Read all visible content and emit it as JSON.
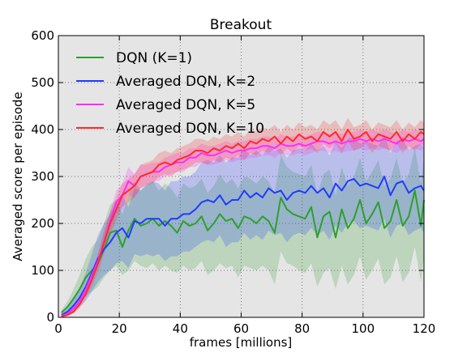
{
  "colors": {
    "dqn": "#2ca02c",
    "avg_k2": "#1f3cff",
    "avg_k5": "#ff2bff",
    "avg_k10": "#ff2a2a",
    "axes_bg": "#e5e5e5",
    "grid": "#777777"
  },
  "chart_data": {
    "type": "line",
    "title": "Breakout",
    "xlabel": "frames [millions]",
    "ylabel": "Averaged score per episode",
    "xlim": [
      0,
      120
    ],
    "ylim": [
      0,
      600
    ],
    "xticks": [
      0,
      20,
      40,
      60,
      80,
      100,
      120
    ],
    "yticks": [
      0,
      100,
      200,
      300,
      400,
      500,
      600
    ],
    "grid": true,
    "legend_position": "top-left",
    "x": [
      1,
      3,
      5,
      7,
      9,
      11,
      13,
      15,
      17,
      19,
      21,
      23,
      25,
      27,
      29,
      31,
      33,
      35,
      37,
      39,
      41,
      43,
      45,
      47,
      49,
      51,
      53,
      55,
      57,
      59,
      61,
      63,
      65,
      67,
      69,
      71,
      73,
      75,
      77,
      79,
      81,
      83,
      85,
      87,
      89,
      91,
      93,
      95,
      97,
      99,
      101,
      103,
      105,
      107,
      109,
      111,
      113,
      115,
      117,
      119,
      120
    ],
    "series": [
      {
        "name": "DQN (K=1)",
        "color_key": "dqn",
        "values": [
          10,
          22,
          40,
          60,
          85,
          100,
          115,
          145,
          180,
          185,
          150,
          185,
          210,
          195,
          200,
          210,
          195,
          205,
          195,
          180,
          205,
          195,
          200,
          215,
          185,
          200,
          220,
          205,
          210,
          190,
          215,
          210,
          200,
          215,
          205,
          180,
          255,
          230,
          220,
          215,
          210,
          235,
          170,
          215,
          225,
          170,
          230,
          190,
          210,
          250,
          200,
          220,
          245,
          190,
          205,
          250,
          195,
          215,
          270,
          195,
          250
        ],
        "lower": [
          5,
          10,
          20,
          30,
          45,
          55,
          65,
          85,
          100,
          110,
          90,
          100,
          120,
          110,
          105,
          115,
          100,
          110,
          100,
          95,
          110,
          100,
          105,
          120,
          90,
          100,
          115,
          105,
          110,
          85,
          110,
          105,
          100,
          110,
          100,
          70,
          140,
          115,
          110,
          100,
          95,
          115,
          65,
          95,
          105,
          60,
          110,
          70,
          90,
          130,
          80,
          100,
          125,
          70,
          85,
          130,
          75,
          95,
          150,
          75,
          130
        ],
        "upper": [
          15,
          34,
          60,
          90,
          125,
          150,
          165,
          200,
          240,
          250,
          220,
          260,
          290,
          270,
          280,
          290,
          270,
          285,
          275,
          255,
          285,
          275,
          280,
          295,
          265,
          280,
          305,
          285,
          295,
          275,
          300,
          295,
          285,
          300,
          290,
          265,
          345,
          320,
          310,
          305,
          300,
          325,
          260,
          305,
          315,
          260,
          320,
          280,
          300,
          340,
          290,
          310,
          335,
          280,
          295,
          340,
          285,
          305,
          360,
          285,
          340
        ]
      },
      {
        "name": "Averaged DQN, K=2",
        "color_key": "avg_k2",
        "values": [
          5,
          12,
          25,
          42,
          65,
          95,
          125,
          145,
          160,
          180,
          190,
          170,
          205,
          200,
          210,
          210,
          210,
          195,
          210,
          210,
          220,
          220,
          230,
          245,
          250,
          245,
          260,
          240,
          250,
          250,
          270,
          255,
          265,
          255,
          275,
          265,
          270,
          250,
          265,
          270,
          265,
          280,
          265,
          275,
          255,
          285,
          270,
          290,
          295,
          280,
          285,
          280,
          275,
          300,
          260,
          285,
          290,
          265,
          275,
          280,
          270
        ],
        "lower": [
          2,
          6,
          12,
          22,
          35,
          55,
          75,
          90,
          100,
          115,
          120,
          105,
          135,
          130,
          135,
          130,
          135,
          120,
          130,
          130,
          140,
          140,
          150,
          160,
          165,
          160,
          175,
          150,
          160,
          160,
          180,
          165,
          175,
          165,
          185,
          175,
          180,
          160,
          175,
          180,
          175,
          190,
          175,
          185,
          165,
          195,
          180,
          200,
          205,
          190,
          195,
          190,
          185,
          210,
          170,
          195,
          200,
          175,
          185,
          190,
          180
        ],
        "upper": [
          8,
          18,
          38,
          62,
          95,
          135,
          175,
          200,
          220,
          245,
          260,
          235,
          275,
          270,
          285,
          290,
          285,
          270,
          290,
          290,
          300,
          300,
          310,
          330,
          335,
          330,
          345,
          330,
          340,
          340,
          360,
          345,
          355,
          345,
          365,
          355,
          360,
          340,
          355,
          360,
          355,
          370,
          355,
          365,
          345,
          375,
          360,
          380,
          385,
          370,
          375,
          370,
          365,
          390,
          350,
          375,
          380,
          355,
          365,
          370,
          360
        ]
      },
      {
        "name": "Averaged DQN, K=5",
        "color_key": "avg_k5",
        "values": [
          3,
          8,
          18,
          35,
          60,
          90,
          120,
          160,
          205,
          245,
          260,
          290,
          280,
          300,
          305,
          310,
          310,
          320,
          325,
          330,
          330,
          340,
          340,
          350,
          345,
          345,
          350,
          355,
          350,
          355,
          355,
          360,
          360,
          365,
          365,
          360,
          370,
          365,
          365,
          370,
          365,
          370,
          375,
          375,
          370,
          375,
          370,
          375,
          375,
          380,
          375,
          380,
          375,
          380,
          375,
          370,
          380,
          375,
          380,
          375,
          380
        ],
        "lower": [
          2,
          6,
          14,
          28,
          50,
          78,
          105,
          140,
          185,
          220,
          235,
          260,
          255,
          275,
          285,
          290,
          290,
          300,
          305,
          310,
          310,
          320,
          320,
          330,
          325,
          325,
          330,
          335,
          330,
          335,
          335,
          340,
          340,
          345,
          345,
          340,
          350,
          345,
          345,
          350,
          345,
          350,
          355,
          355,
          350,
          355,
          350,
          355,
          355,
          360,
          355,
          360,
          355,
          360,
          355,
          350,
          360,
          355,
          360,
          355,
          360
        ],
        "upper": [
          4,
          10,
          22,
          42,
          70,
          102,
          135,
          180,
          225,
          270,
          285,
          320,
          305,
          325,
          325,
          330,
          330,
          340,
          345,
          350,
          350,
          360,
          360,
          370,
          365,
          365,
          370,
          375,
          370,
          375,
          375,
          380,
          380,
          385,
          385,
          380,
          390,
          385,
          385,
          390,
          385,
          390,
          395,
          395,
          390,
          395,
          390,
          395,
          395,
          400,
          395,
          400,
          395,
          400,
          395,
          390,
          400,
          395,
          400,
          395,
          400
        ]
      },
      {
        "name": "Averaged DQN, K=10",
        "color_key": "avg_k10",
        "values": [
          2,
          5,
          12,
          28,
          50,
          80,
          115,
          160,
          200,
          230,
          260,
          270,
          280,
          300,
          305,
          310,
          325,
          330,
          325,
          335,
          340,
          345,
          355,
          355,
          350,
          360,
          355,
          365,
          360,
          370,
          360,
          375,
          370,
          380,
          375,
          385,
          370,
          385,
          375,
          390,
          380,
          385,
          375,
          395,
          385,
          395,
          375,
          400,
          380,
          385,
          395,
          375,
          390,
          385,
          380,
          395,
          375,
          390,
          380,
          395,
          390
        ],
        "lower": [
          1,
          3,
          8,
          20,
          40,
          65,
          95,
          135,
          175,
          205,
          235,
          245,
          255,
          275,
          280,
          285,
          300,
          305,
          300,
          310,
          315,
          320,
          330,
          330,
          325,
          335,
          330,
          340,
          335,
          345,
          335,
          350,
          345,
          355,
          350,
          360,
          345,
          360,
          350,
          365,
          355,
          360,
          350,
          370,
          360,
          370,
          350,
          375,
          355,
          360,
          370,
          350,
          365,
          360,
          355,
          370,
          350,
          365,
          355,
          370,
          365
        ],
        "upper": [
          3,
          7,
          16,
          36,
          60,
          95,
          135,
          185,
          225,
          255,
          285,
          295,
          305,
          325,
          330,
          335,
          350,
          355,
          350,
          360,
          365,
          370,
          380,
          380,
          375,
          385,
          380,
          390,
          385,
          395,
          385,
          400,
          395,
          405,
          400,
          410,
          395,
          410,
          400,
          415,
          405,
          410,
          400,
          420,
          410,
          420,
          400,
          425,
          405,
          410,
          420,
          400,
          415,
          410,
          405,
          420,
          400,
          415,
          405,
          420,
          415
        ]
      }
    ]
  }
}
